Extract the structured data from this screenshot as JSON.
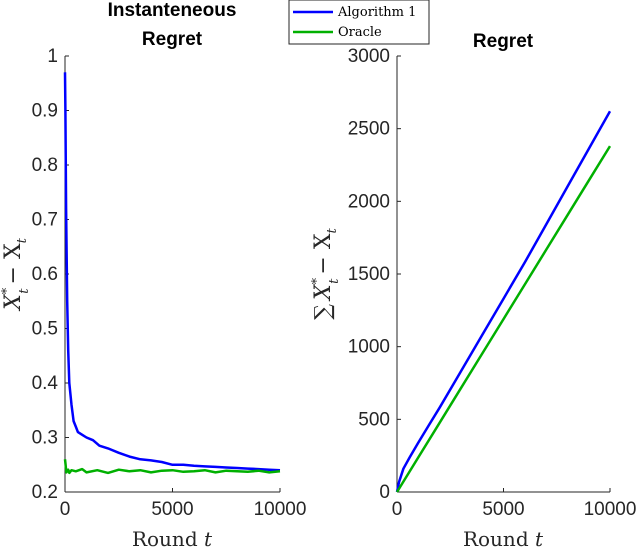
{
  "legend": [
    {
      "name": "Algorithm 1",
      "color": "#0000ff"
    },
    {
      "name": "Oracle",
      "color": "#00b000"
    }
  ],
  "chart_data": [
    {
      "type": "line",
      "title_lines": [
        "Instanteneous",
        "Regret"
      ],
      "xlabel_text": "Round ",
      "xlabel_var": "t",
      "ylabel_main": "X",
      "ylabel_sup": "*",
      "ylabel_sub": "t",
      "ylabel_rest": "− X",
      "ylabel_sub2": "t",
      "xlim": [
        0,
        10000
      ],
      "ylim": [
        0.2,
        1.0
      ],
      "xticks": [
        0,
        5000,
        10000
      ],
      "xtick_labels": [
        "0",
        "5000",
        "10000"
      ],
      "yticks": [
        0.2,
        0.3,
        0.4,
        0.5,
        0.6,
        0.7,
        0.8,
        0.9,
        1.0
      ],
      "ytick_labels": [
        "0.2",
        "0.3",
        "0.4",
        "0.5",
        "0.6",
        "0.7",
        "0.8",
        "0.9",
        "1"
      ],
      "series": [
        {
          "name": "Algorithm 1",
          "color": "#0000ff",
          "x": [
            0,
            20,
            50,
            100,
            150,
            200,
            300,
            400,
            500,
            600,
            800,
            1000,
            1300,
            1600,
            2000,
            2500,
            3000,
            3500,
            4000,
            4500,
            5000,
            5500,
            6000,
            6500,
            7000,
            7500,
            8000,
            8500,
            9000,
            9500,
            10000
          ],
          "y": [
            0.97,
            0.9,
            0.72,
            0.55,
            0.46,
            0.4,
            0.36,
            0.33,
            0.32,
            0.31,
            0.305,
            0.3,
            0.295,
            0.285,
            0.28,
            0.272,
            0.265,
            0.26,
            0.258,
            0.255,
            0.25,
            0.25,
            0.248,
            0.247,
            0.246,
            0.245,
            0.244,
            0.243,
            0.242,
            0.241,
            0.24
          ]
        },
        {
          "name": "Oracle",
          "color": "#00b000",
          "x": [
            0,
            30,
            60,
            100,
            150,
            200,
            300,
            500,
            800,
            1000,
            1500,
            2000,
            2500,
            3000,
            3500,
            4000,
            4500,
            5000,
            5500,
            6000,
            6500,
            7000,
            7500,
            8000,
            8500,
            9000,
            9500,
            10000
          ],
          "y": [
            0.26,
            0.25,
            0.236,
            0.238,
            0.241,
            0.235,
            0.24,
            0.238,
            0.242,
            0.236,
            0.24,
            0.235,
            0.241,
            0.238,
            0.24,
            0.236,
            0.239,
            0.24,
            0.237,
            0.238,
            0.24,
            0.236,
            0.239,
            0.238,
            0.237,
            0.239,
            0.236,
            0.238
          ]
        }
      ]
    },
    {
      "type": "line",
      "title_lines": [
        "Regret"
      ],
      "xlabel_text": "Round ",
      "xlabel_var": "t",
      "ylabel_sum": "∑",
      "ylabel_main": "X",
      "ylabel_sup": "*",
      "ylabel_sub": "t",
      "ylabel_rest": "− X",
      "ylabel_sub2": "t",
      "xlim": [
        0,
        10000
      ],
      "ylim": [
        0,
        3000
      ],
      "xticks": [
        0,
        5000,
        10000
      ],
      "xtick_labels": [
        "0",
        "5000",
        "10000"
      ],
      "yticks": [
        0,
        500,
        1000,
        1500,
        2000,
        2500,
        3000
      ],
      "ytick_labels": [
        "0",
        "500",
        "1000",
        "1500",
        "2000",
        "2500",
        "3000"
      ],
      "series": [
        {
          "name": "Algorithm 1",
          "color": "#0000ff",
          "x": [
            0,
            100,
            300,
            600,
            1000,
            1500,
            2000,
            3000,
            4000,
            5000,
            6000,
            7000,
            8000,
            9000,
            10000
          ],
          "y": [
            0,
            70,
            160,
            240,
            340,
            460,
            580,
            830,
            1080,
            1330,
            1580,
            1840,
            2100,
            2360,
            2620
          ]
        },
        {
          "name": "Oracle",
          "color": "#00b000",
          "x": [
            0,
            1000,
            2000,
            3000,
            4000,
            5000,
            6000,
            7000,
            8000,
            9000,
            10000
          ],
          "y": [
            0,
            238,
            476,
            714,
            952,
            1190,
            1428,
            1666,
            1904,
            2142,
            2380
          ]
        }
      ]
    }
  ]
}
